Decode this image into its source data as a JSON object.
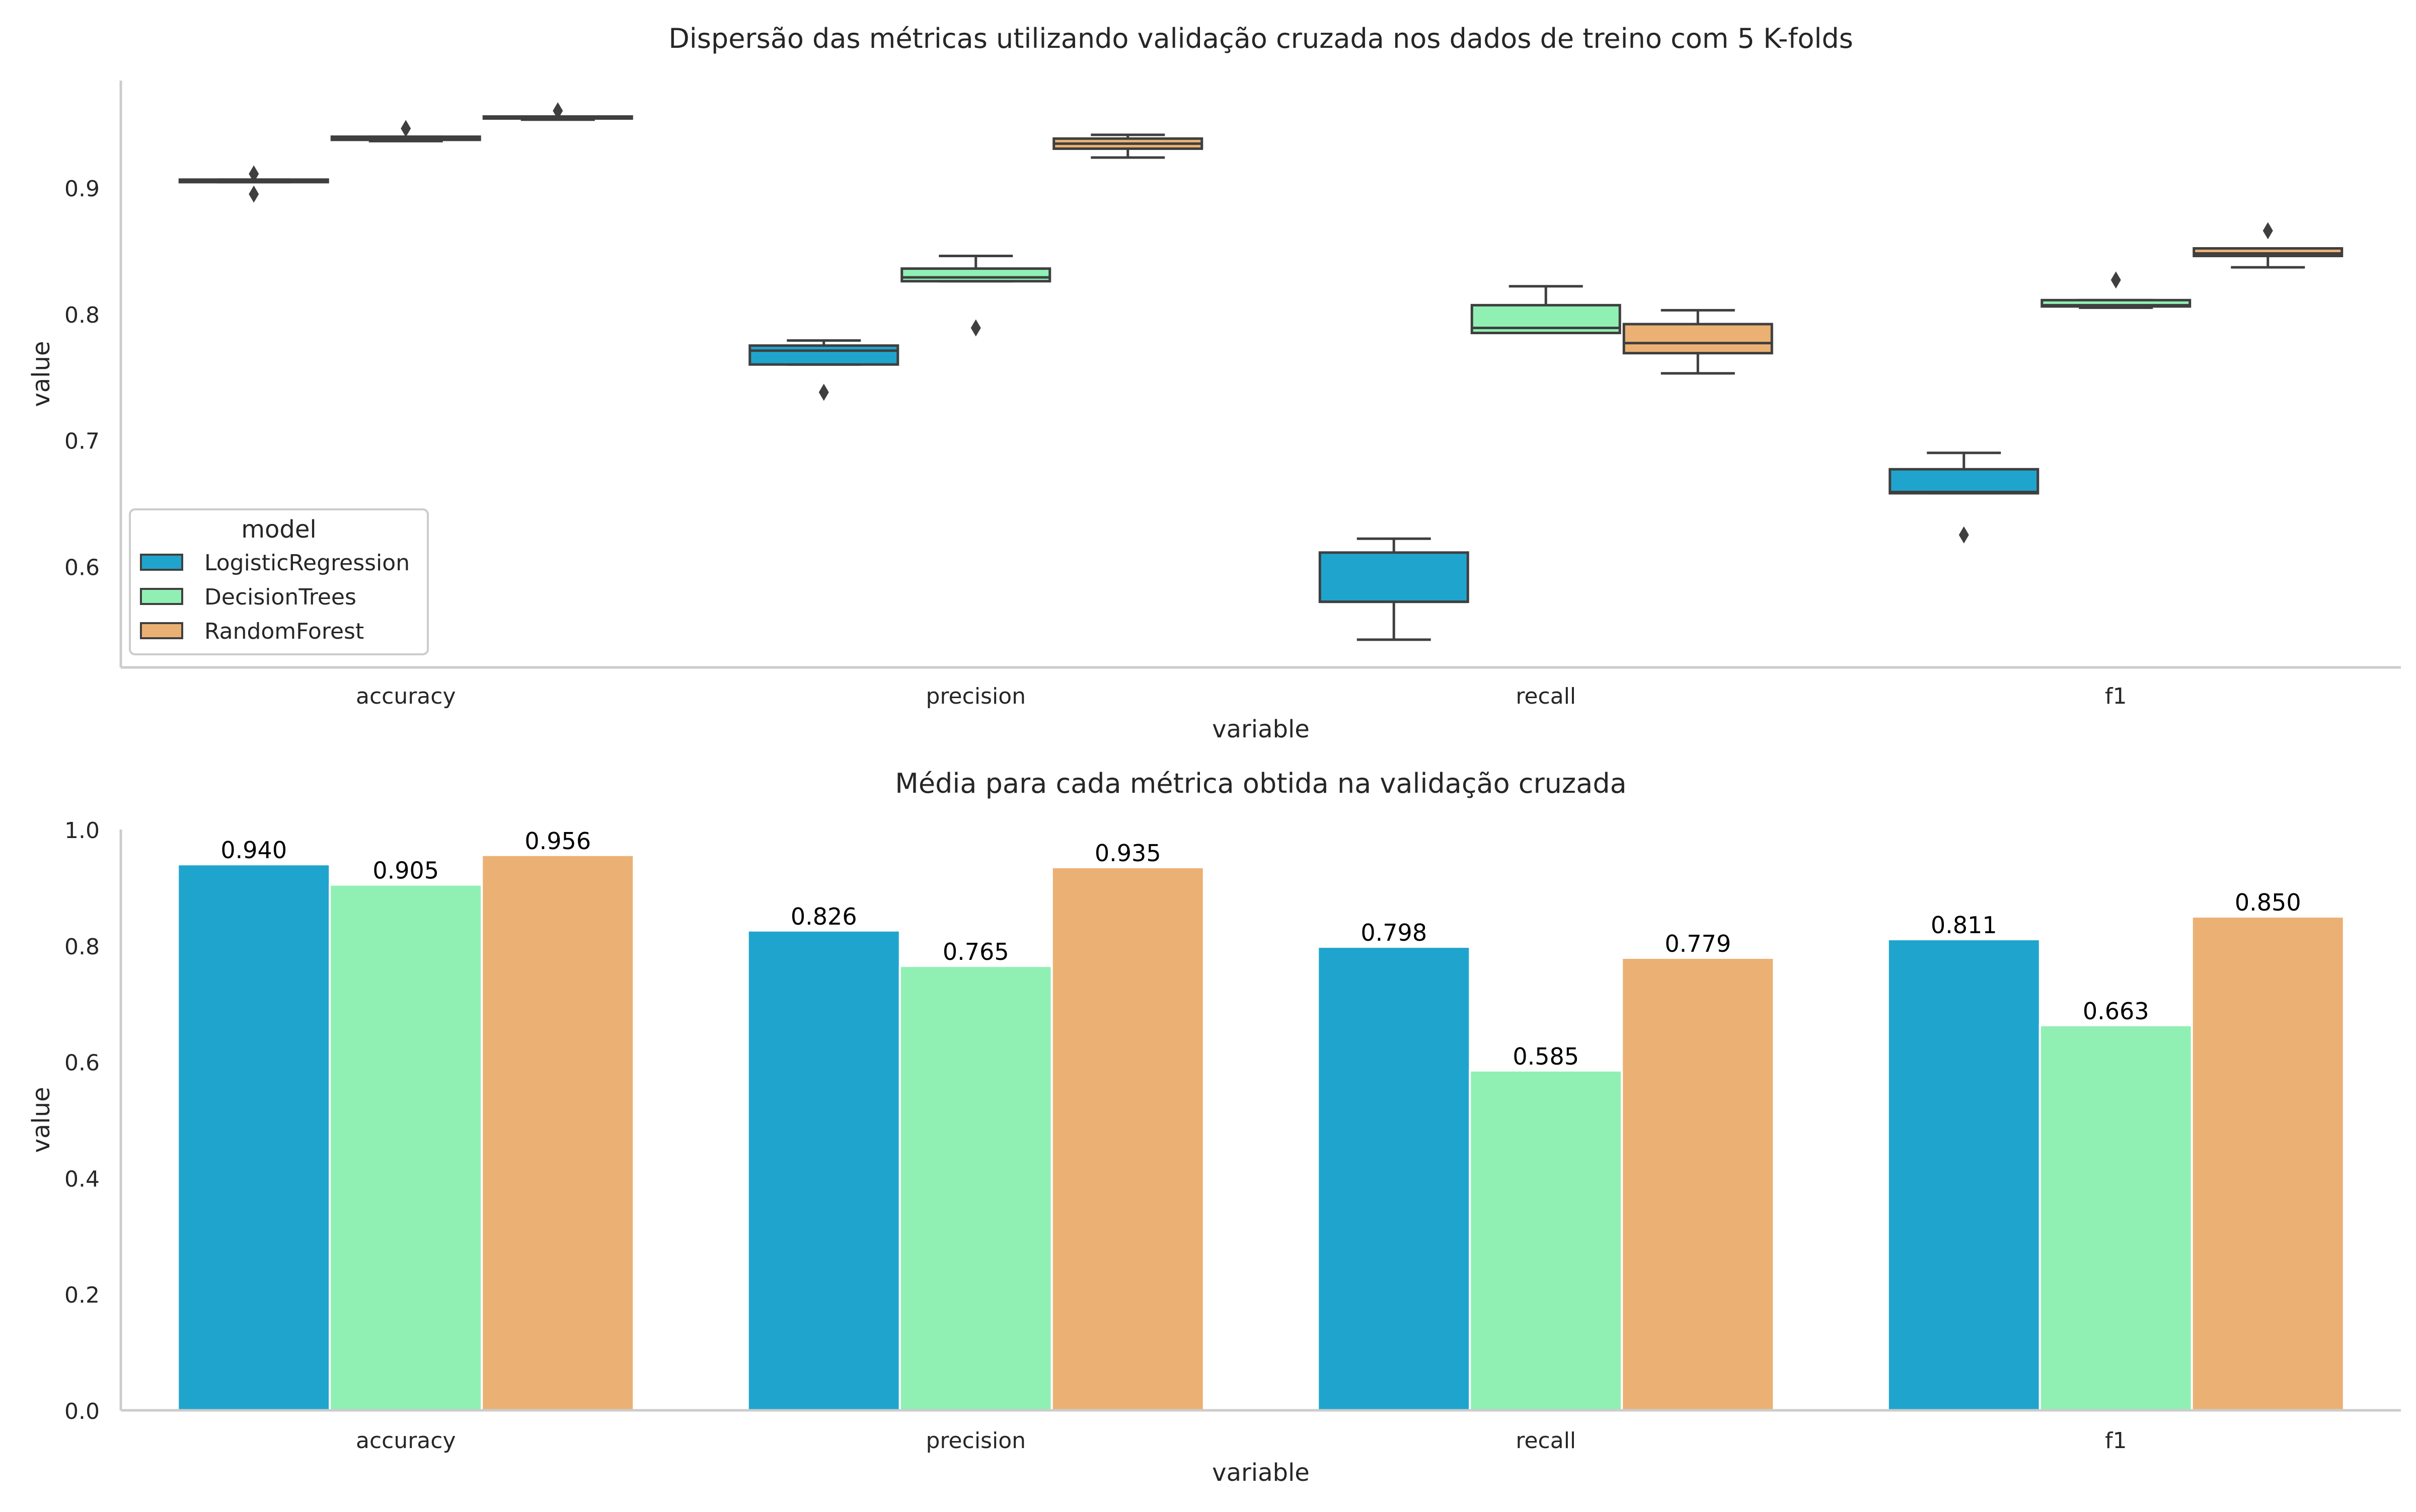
{
  "colors": {
    "LogisticRegression": "#1fa5cd",
    "DecisionTrees": "#90f0b4",
    "RandomForest": "#ebb174",
    "box_line": "#3f3f3f",
    "axis_line": "#cccccc",
    "text": "#262626"
  },
  "chart_data": [
    {
      "type": "box",
      "title": "Dispersão das métricas utilizando validação cruzada nos dados de treino com 5 K-folds",
      "xlabel": "variable",
      "ylabel": "value",
      "categories": [
        "accuracy",
        "precision",
        "recall",
        "f1"
      ],
      "ylim": [
        0.52,
        0.985
      ],
      "yticks": [
        0.6,
        0.7,
        0.8,
        0.9
      ],
      "ytick_labels": [
        "0.6",
        "0.7",
        "0.8",
        "0.9"
      ],
      "legend": {
        "title": "model",
        "placement": "lower-left"
      },
      "series": [
        {
          "name": "LogisticRegression",
          "boxes": [
            {
              "q1": 0.9045,
              "median": 0.9055,
              "q3": 0.9065,
              "low": 0.9045,
              "high": 0.9065,
              "outliers": [
                0.911,
                0.895
              ]
            },
            {
              "q1": 0.76,
              "median": 0.771,
              "q3": 0.775,
              "low": 0.76,
              "high": 0.779,
              "outliers": [
                0.738
              ]
            },
            {
              "q1": 0.572,
              "median": 0.572,
              "q3": 0.611,
              "low": 0.542,
              "high": 0.622,
              "outliers": []
            },
            {
              "q1": 0.658,
              "median": 0.659,
              "q3": 0.677,
              "low": 0.658,
              "high": 0.69,
              "outliers": [
                0.625
              ]
            }
          ]
        },
        {
          "name": "DecisionTrees",
          "boxes": [
            {
              "q1": 0.938,
              "median": 0.9395,
              "q3": 0.9405,
              "low": 0.937,
              "high": 0.9405,
              "outliers": [
                0.947
              ]
            },
            {
              "q1": 0.826,
              "median": 0.829,
              "q3": 0.836,
              "low": 0.826,
              "high": 0.846,
              "outliers": [
                0.789
              ]
            },
            {
              "q1": 0.785,
              "median": 0.789,
              "q3": 0.807,
              "low": 0.785,
              "high": 0.822,
              "outliers": []
            },
            {
              "q1": 0.806,
              "median": 0.807,
              "q3": 0.811,
              "low": 0.805,
              "high": 0.811,
              "outliers": [
                0.827
              ]
            }
          ]
        },
        {
          "name": "RandomForest",
          "boxes": [
            {
              "q1": 0.955,
              "median": 0.9555,
              "q3": 0.9565,
              "low": 0.954,
              "high": 0.9565,
              "outliers": [
                0.961
              ]
            },
            {
              "q1": 0.931,
              "median": 0.935,
              "q3": 0.939,
              "low": 0.924,
              "high": 0.942,
              "outliers": []
            },
            {
              "q1": 0.769,
              "median": 0.777,
              "q3": 0.792,
              "low": 0.753,
              "high": 0.803,
              "outliers": []
            },
            {
              "q1": 0.846,
              "median": 0.848,
              "q3": 0.852,
              "low": 0.837,
              "high": 0.852,
              "outliers": [
                0.866
              ]
            }
          ]
        }
      ]
    },
    {
      "type": "bar",
      "title": "Média para cada métrica obtida na validação cruzada",
      "xlabel": "variable",
      "ylabel": "value",
      "categories": [
        "accuracy",
        "precision",
        "recall",
        "f1"
      ],
      "ylim": [
        0,
        1.0
      ],
      "yticks": [
        0.0,
        0.2,
        0.4,
        0.6,
        0.8,
        1.0
      ],
      "ytick_labels": [
        "0.0",
        "0.2",
        "0.4",
        "0.6",
        "0.8",
        "1.0"
      ],
      "series": [
        {
          "name": "LogisticRegression",
          "values": [
            0.94,
            0.826,
            0.798,
            0.811
          ],
          "labels": [
            "0.940",
            "0.826",
            "0.798",
            "0.811"
          ]
        },
        {
          "name": "DecisionTrees",
          "values": [
            0.905,
            0.765,
            0.585,
            0.663
          ],
          "labels": [
            "0.905",
            "0.765",
            "0.585",
            "0.663"
          ]
        },
        {
          "name": "RandomForest",
          "values": [
            0.956,
            0.935,
            0.779,
            0.85
          ],
          "labels": [
            "0.956",
            "0.935",
            "0.779",
            "0.850"
          ]
        }
      ]
    }
  ]
}
